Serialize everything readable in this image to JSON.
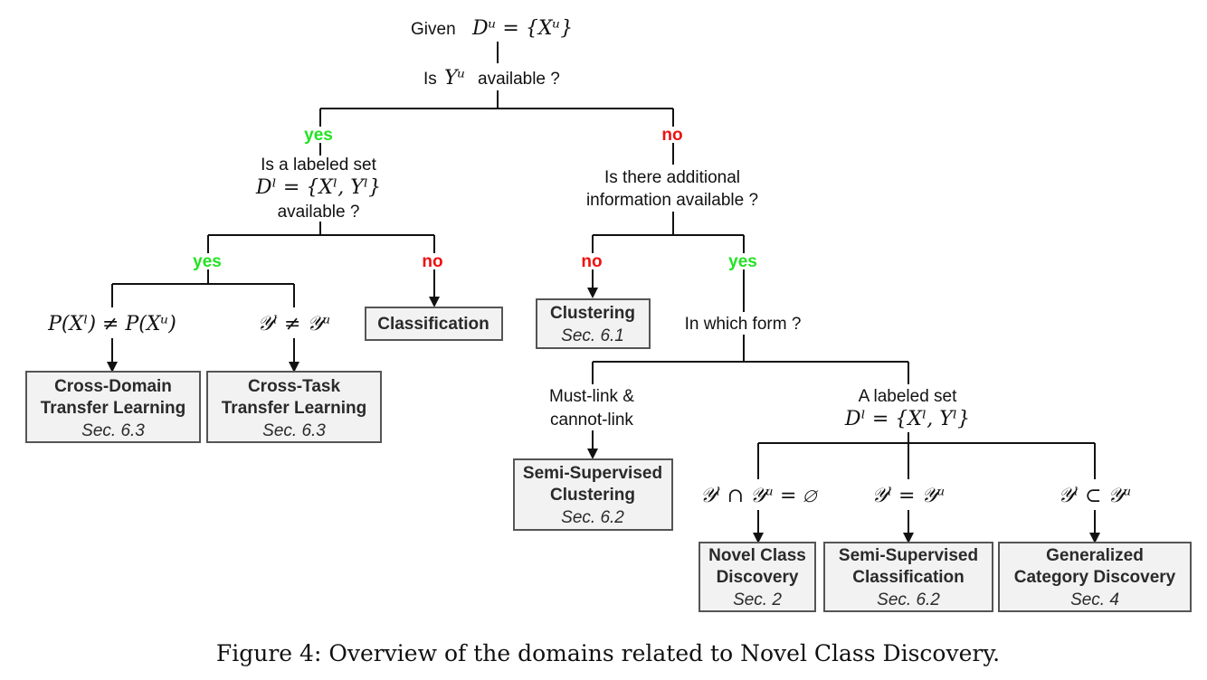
{
  "root": {
    "given": "Given",
    "given_math": "Dᵘ = {Xᵘ}"
  },
  "q1": {
    "before": "Is",
    "math": "Yᵘ",
    "after": "available ?"
  },
  "q1_yes": "yes",
  "q1_no": "no",
  "q2": {
    "line1": "Is a labeled set",
    "math": "Dˡ = {Xˡ, Yˡ}",
    "line3": "available ?"
  },
  "q2_yes": "yes",
  "q2_no": "no",
  "cond_domain": "P(Xˡ) ≠ P(Xᵘ)",
  "cond_task": "𝒴ˡ ≠ 𝒴ᵘ",
  "q3": {
    "line1": "Is there additional",
    "line2": "information available ?"
  },
  "q3_no": "no",
  "q3_yes": "yes",
  "q4": "In which form ?",
  "form_constraints": {
    "line1": "Must-link &",
    "line2": "cannot-link"
  },
  "form_labeled": {
    "line1": "A labeled set",
    "math": "Dˡ = {Xˡ, Yˡ}"
  },
  "cond_disjoint": "𝒴ˡ ∩ 𝒴ᵘ = ∅",
  "cond_equal": "𝒴ˡ = 𝒴ᵘ",
  "cond_subset": "𝒴ˡ ⊂ 𝒴ᵘ",
  "boxes": {
    "cross_domain": {
      "line1": "Cross-Domain",
      "line2": "Transfer Learning",
      "sec": "Sec. 6.3"
    },
    "cross_task": {
      "line1": "Cross-Task",
      "line2": "Transfer Learning",
      "sec": "Sec. 6.3"
    },
    "classification": {
      "line1": "Classification"
    },
    "clustering": {
      "line1": "Clustering",
      "sec": "Sec. 6.1"
    },
    "ss_clustering": {
      "line1": "Semi-Supervised",
      "line2": "Clustering",
      "sec": "Sec. 6.2"
    },
    "ncd": {
      "line1": "Novel Class",
      "line2": "Discovery",
      "sec": "Sec. 2"
    },
    "ss_classification": {
      "line1": "Semi-Supervised",
      "line2": "Classification",
      "sec": "Sec. 6.2"
    },
    "gcd": {
      "line1": "Generalized",
      "line2": "Category Discovery",
      "sec": "Sec. 4"
    }
  },
  "caption": "Figure 4: Overview of the domains related to Novel Class Discovery.",
  "colors": {
    "yes": "#22e322",
    "no": "#ee1111",
    "box_fill": "#f2f2f2",
    "box_border": "#555555"
  }
}
